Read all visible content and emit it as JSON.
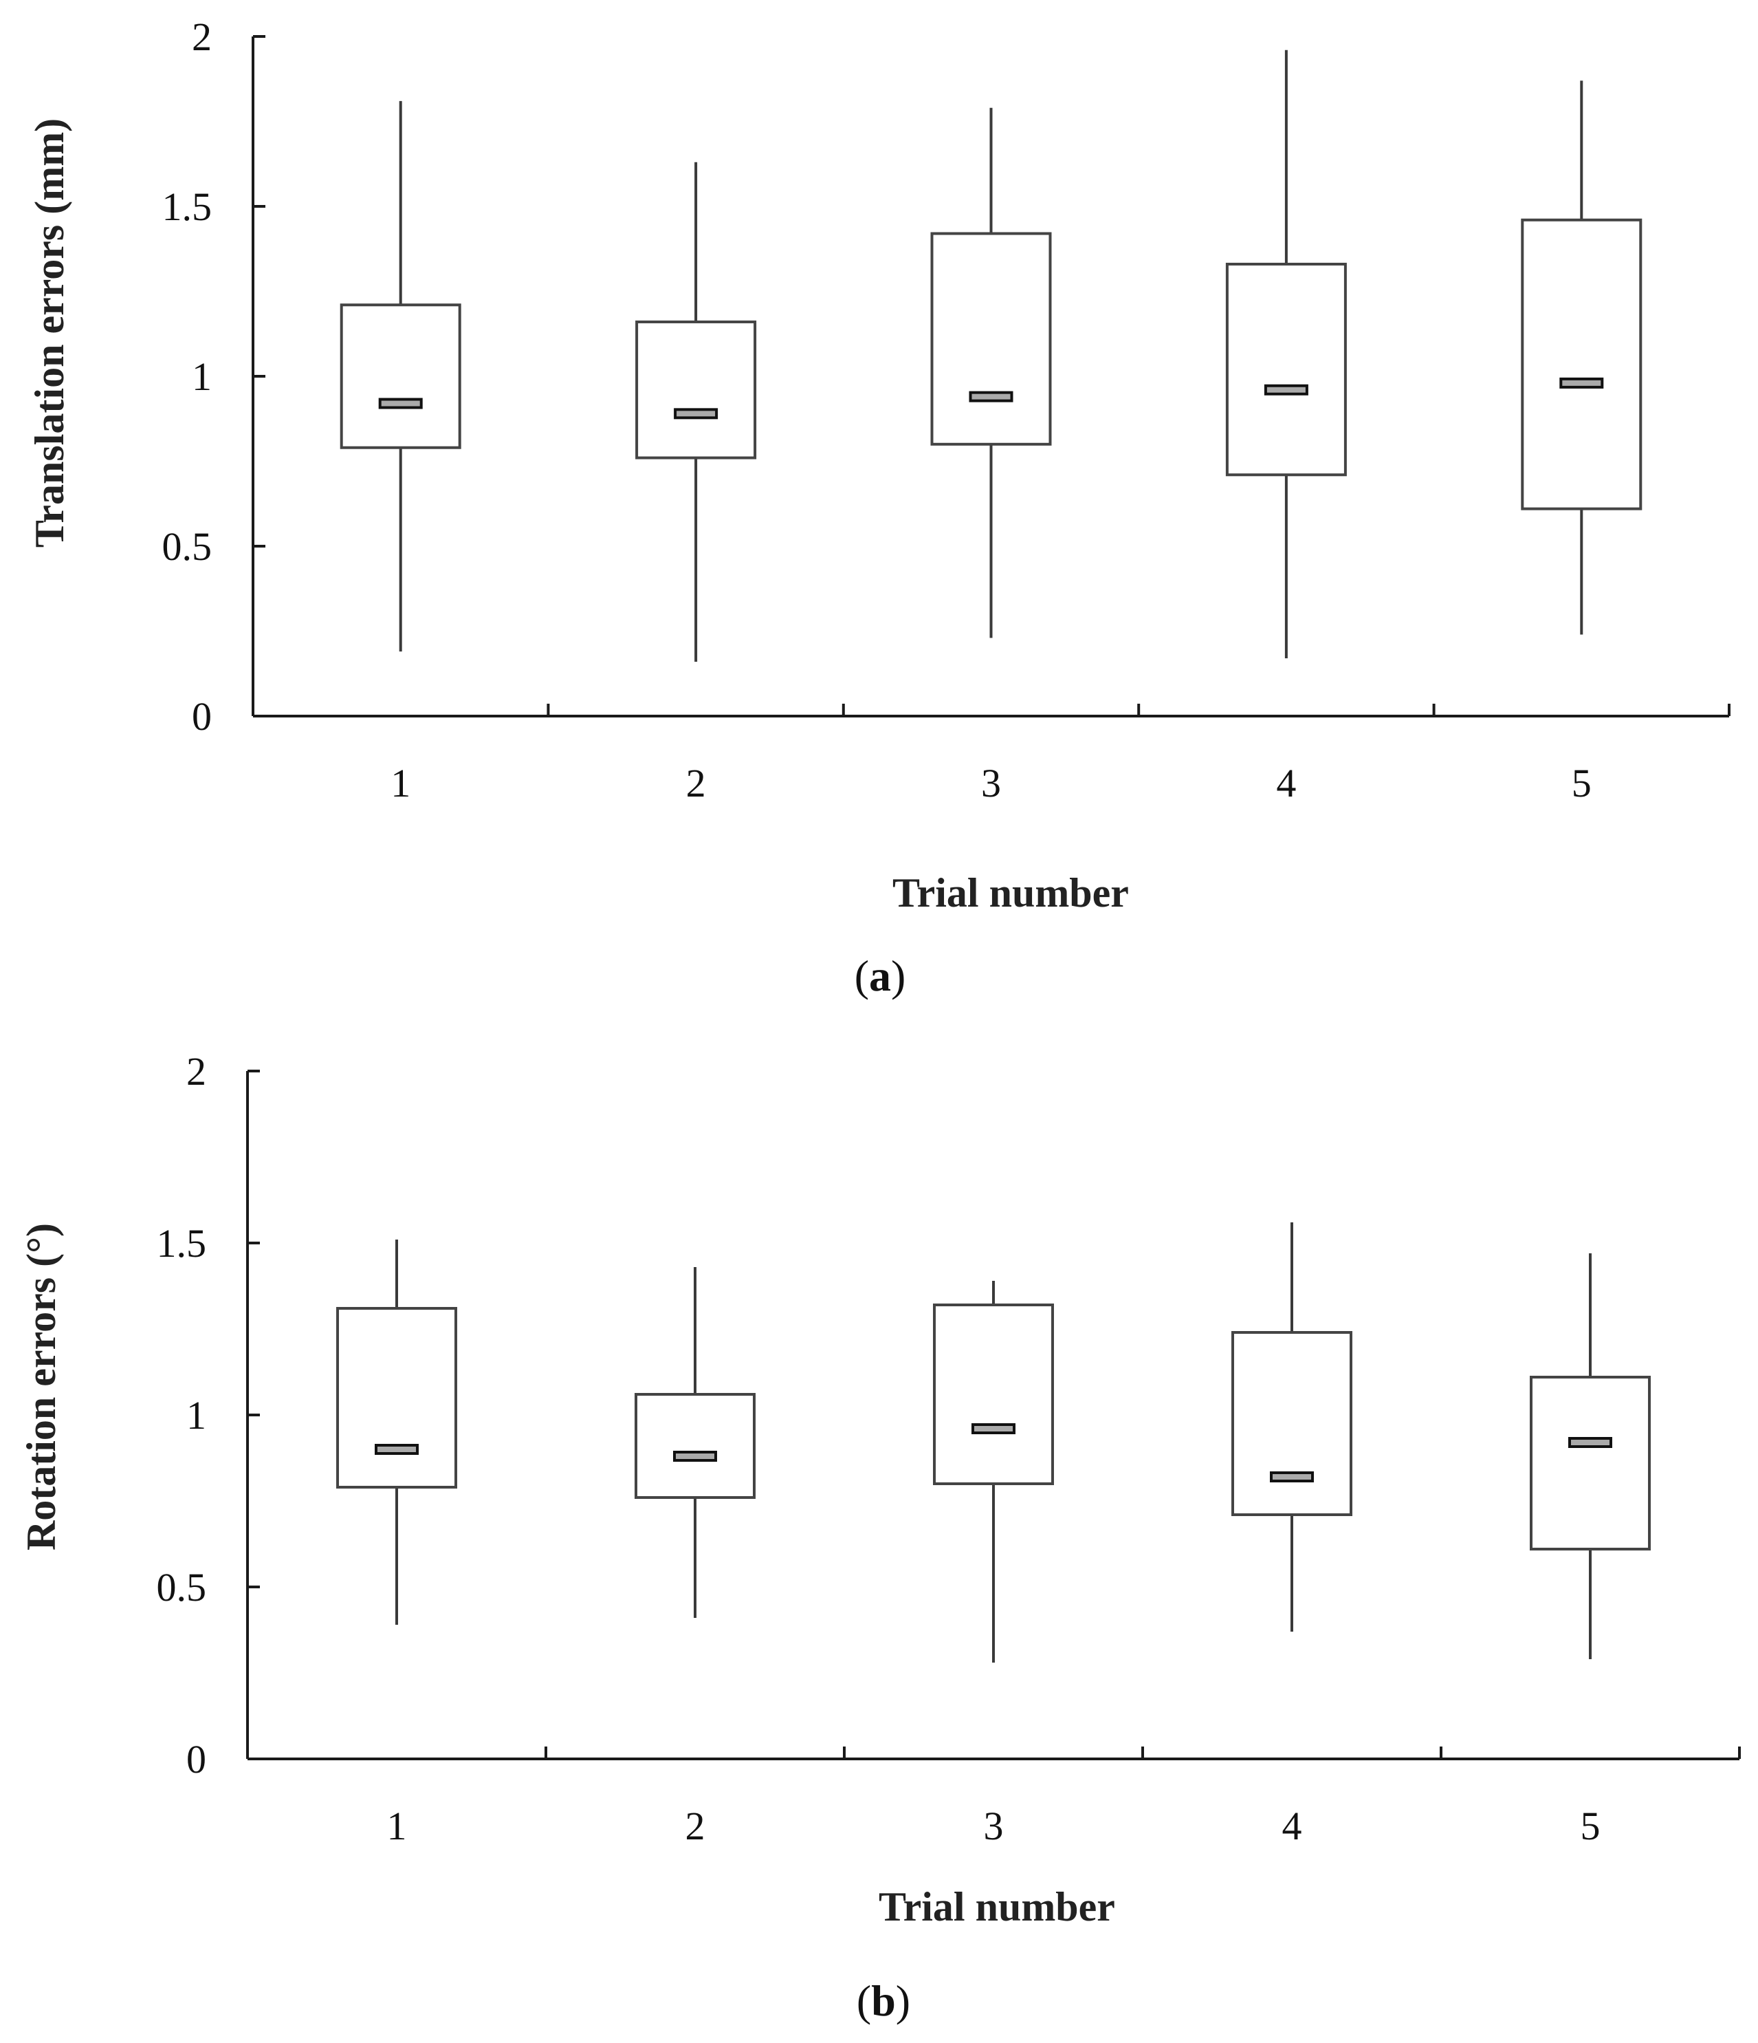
{
  "chart_data": [
    {
      "type": "boxplot",
      "panel_label": "a",
      "xlabel": "Trial number",
      "ylabel": "Translation errors (mm)",
      "ylim": [
        0,
        2
      ],
      "yticks": [
        "0",
        "0.5",
        "1",
        "1.5",
        "2"
      ],
      "categories": [
        "1",
        "2",
        "3",
        "4",
        "5"
      ],
      "boxes": [
        {
          "min": 0.19,
          "q1": 0.79,
          "median": 0.92,
          "q3": 1.21,
          "max": 1.81
        },
        {
          "min": 0.16,
          "q1": 0.76,
          "median": 0.89,
          "q3": 1.16,
          "max": 1.63
        },
        {
          "min": 0.23,
          "q1": 0.8,
          "median": 0.94,
          "q3": 1.42,
          "max": 1.79
        },
        {
          "min": 0.17,
          "q1": 0.71,
          "median": 0.96,
          "q3": 1.33,
          "max": 1.96
        },
        {
          "min": 0.24,
          "q1": 0.61,
          "median": 0.98,
          "q3": 1.46,
          "max": 1.87
        }
      ]
    },
    {
      "type": "boxplot",
      "panel_label": "b",
      "xlabel": "Trial number",
      "ylabel": "Rotation errors (°)",
      "ylim": [
        0,
        2
      ],
      "yticks": [
        "0",
        "0.5",
        "1",
        "1.5",
        "2"
      ],
      "categories": [
        "1",
        "2",
        "3",
        "4",
        "5"
      ],
      "boxes": [
        {
          "min": 0.39,
          "q1": 0.79,
          "median": 0.9,
          "q3": 1.31,
          "max": 1.51
        },
        {
          "min": 0.41,
          "q1": 0.76,
          "median": 0.88,
          "q3": 1.06,
          "max": 1.43
        },
        {
          "min": 0.28,
          "q1": 0.8,
          "median": 0.96,
          "q3": 1.32,
          "max": 1.39
        },
        {
          "min": 0.37,
          "q1": 0.71,
          "median": 0.82,
          "q3": 1.24,
          "max": 1.56
        },
        {
          "min": 0.29,
          "q1": 0.61,
          "median": 0.92,
          "q3": 1.11,
          "max": 1.47
        }
      ]
    }
  ]
}
